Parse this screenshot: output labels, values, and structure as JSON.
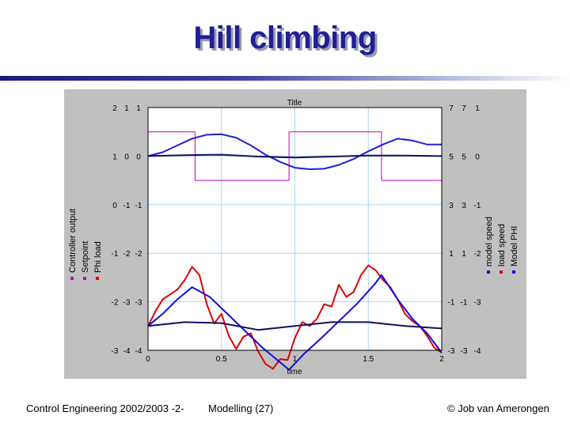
{
  "slide": {
    "title": "Hill climbing",
    "footer_left": "Control Engineering 2002/2003 -2-",
    "footer_center": "Modelling  (27)",
    "footer_right": "© Job van Amerongen"
  },
  "colors": {
    "title": "#1f1f96",
    "panel": "#c0c0c0",
    "plot_bg": "#ffffff",
    "grid": "#a8d8f0",
    "magenta": "#c000c0",
    "red": "#e00000",
    "blue": "#1010e0",
    "navy": "#101060"
  },
  "chart_data": {
    "type": "line",
    "title": "Title",
    "xlabel": "time",
    "xlim": [
      0,
      2
    ],
    "x_ticks": [
      "0",
      "0.5",
      "1",
      "1.5",
      "2"
    ],
    "left_axis_labels": [
      "Controller output",
      "Setpoint",
      "Phi load"
    ],
    "right_axis_labels": [
      "model speed",
      "load speed",
      "Model PHI"
    ],
    "left_tick_rows": [
      [
        "2",
        "1",
        "1"
      ],
      [
        "1",
        "0",
        "0"
      ],
      [
        "0",
        "-1",
        "-1"
      ],
      [
        "-1",
        "-2",
        "-2"
      ],
      [
        "-2",
        "-3",
        "-3"
      ],
      [
        "-3",
        "-4",
        "-4"
      ]
    ],
    "right_tick_rows": [
      [
        "7",
        "7",
        "1"
      ],
      [
        "5",
        "5",
        "0"
      ],
      [
        "3",
        "3",
        "-1"
      ],
      [
        "1",
        "1",
        "-2"
      ],
      [
        "-1",
        "-1",
        "-3"
      ],
      [
        "-3",
        "-3",
        "-4"
      ]
    ],
    "ylim": [
      -3,
      2
    ],
    "series": [
      {
        "name": "Setpoint",
        "color": "#c000c0",
        "step": true,
        "x": [
          0,
          0.32,
          0.32,
          0.96,
          0.96,
          1.59,
          1.59,
          2.0
        ],
        "y": [
          1.5,
          1.5,
          0.5,
          0.5,
          1.5,
          1.5,
          0.5,
          0.5
        ]
      },
      {
        "name": "Phi load",
        "color": "#e00000",
        "x": [
          0,
          0.05,
          0.1,
          0.15,
          0.2,
          0.25,
          0.3,
          0.35,
          0.4,
          0.45,
          0.5,
          0.55,
          0.6,
          0.65,
          0.7,
          0.75,
          0.8,
          0.85,
          0.9,
          0.95,
          1.0,
          1.05,
          1.1,
          1.15,
          1.2,
          1.25,
          1.3,
          1.35,
          1.4,
          1.45,
          1.5,
          1.55,
          1.6,
          1.65,
          1.7,
          1.75,
          1.8,
          1.85,
          1.9,
          1.95,
          2.0
        ],
        "y": [
          -2.5,
          -2.2,
          -1.95,
          -1.85,
          -1.75,
          -1.55,
          -1.28,
          -1.45,
          -2.05,
          -2.45,
          -2.25,
          -2.7,
          -2.97,
          -2.72,
          -2.65,
          -3.02,
          -3.28,
          -3.38,
          -3.18,
          -3.2,
          -2.75,
          -2.42,
          -2.5,
          -2.35,
          -2.05,
          -2.1,
          -1.65,
          -1.9,
          -1.8,
          -1.45,
          -1.25,
          -1.35,
          -1.55,
          -1.7,
          -1.95,
          -2.25,
          -2.4,
          -2.5,
          -2.7,
          -2.95,
          -3.05
        ]
      },
      {
        "name": "model speed",
        "color": "#1010e0",
        "x": [
          0,
          0.1,
          0.2,
          0.3,
          0.42,
          0.54,
          0.66,
          0.78,
          0.9,
          0.96,
          1.06,
          1.18,
          1.3,
          1.42,
          1.54,
          1.59,
          1.7,
          1.8,
          1.9,
          2.0
        ],
        "y": [
          -2.5,
          -2.25,
          -1.95,
          -1.7,
          -1.9,
          -2.25,
          -2.6,
          -2.95,
          -3.25,
          -3.4,
          -3.08,
          -2.75,
          -2.4,
          -2.05,
          -1.65,
          -1.45,
          -1.95,
          -2.35,
          -2.65,
          -3.05
        ]
      },
      {
        "name": "load speed",
        "color": "#2020d0",
        "x": [
          0,
          0.1,
          0.2,
          0.3,
          0.4,
          0.5,
          0.6,
          0.7,
          0.8,
          0.9,
          1.0,
          1.1,
          1.2,
          1.3,
          1.4,
          1.5,
          1.6,
          1.7,
          1.8,
          1.9,
          2.0
        ],
        "y": [
          1.0,
          1.08,
          1.22,
          1.36,
          1.44,
          1.45,
          1.38,
          1.22,
          1.03,
          0.88,
          0.76,
          0.73,
          0.74,
          0.82,
          0.94,
          1.1,
          1.24,
          1.36,
          1.32,
          1.24,
          1.24
        ]
      },
      {
        "name": "Model PHI",
        "color": "#101060",
        "x": [
          0,
          0.25,
          0.5,
          0.75,
          1.0,
          1.25,
          1.5,
          1.75,
          2.0
        ],
        "y": [
          1.0,
          1.02,
          1.03,
          0.99,
          0.97,
          0.99,
          1.01,
          1.01,
          1.0
        ]
      },
      {
        "name": "Controller output",
        "color": "#101060",
        "x": [
          0,
          0.25,
          0.5,
          0.75,
          1.0,
          1.25,
          1.5,
          1.75,
          2.0
        ],
        "y": [
          -2.5,
          -2.42,
          -2.44,
          -2.58,
          -2.5,
          -2.42,
          -2.42,
          -2.5,
          -2.55
        ]
      }
    ],
    "grid": true
  }
}
